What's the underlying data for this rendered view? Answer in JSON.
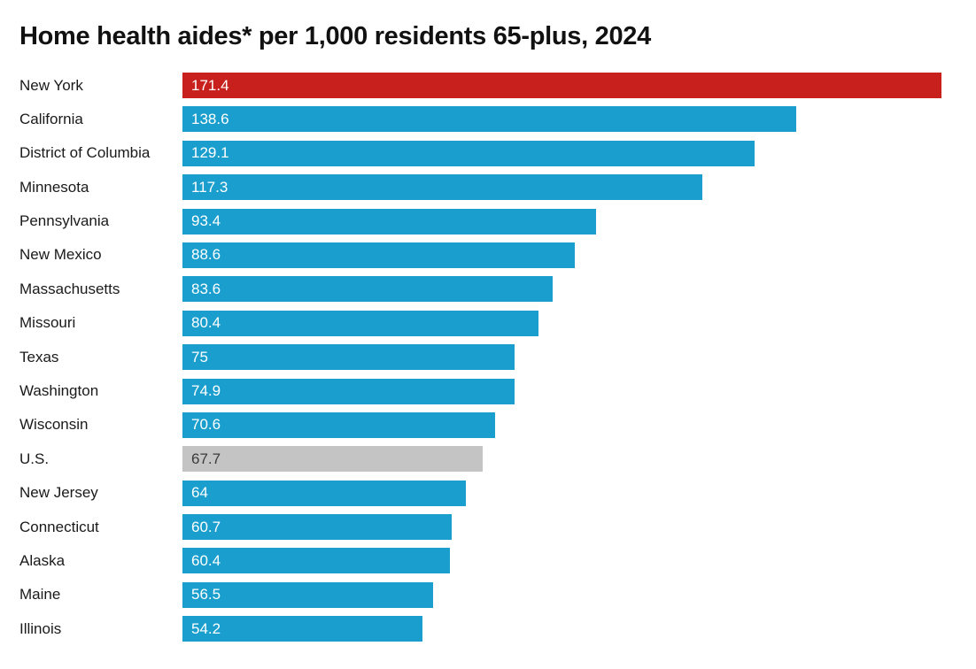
{
  "chart_data": {
    "type": "bar",
    "orientation": "horizontal",
    "title": "Home health aides* per 1,000 residents 65-plus, 2024",
    "xlim": [
      0,
      171.4
    ],
    "grid": false,
    "legend": false,
    "colors": {
      "state_bar": "#199ECD",
      "highlight_bar": "#C8201D",
      "reference_bar": "#C4C4C4",
      "value_text_on_bar": "#FFFFFF",
      "value_text_on_reference": "#3B3B3B",
      "label_text": "#1A1A1A",
      "title_text": "#111111"
    },
    "rows": [
      {
        "label": "New York",
        "value": 171.4,
        "display": "171.4",
        "kind": "highlight"
      },
      {
        "label": "California",
        "value": 138.6,
        "display": "138.6",
        "kind": "state"
      },
      {
        "label": "District of Columbia",
        "value": 129.1,
        "display": "129.1",
        "kind": "state"
      },
      {
        "label": "Minnesota",
        "value": 117.3,
        "display": "117.3",
        "kind": "state"
      },
      {
        "label": "Pennsylvania",
        "value": 93.4,
        "display": "93.4",
        "kind": "state"
      },
      {
        "label": "New Mexico",
        "value": 88.6,
        "display": "88.6",
        "kind": "state"
      },
      {
        "label": "Massachusetts",
        "value": 83.6,
        "display": "83.6",
        "kind": "state"
      },
      {
        "label": "Missouri",
        "value": 80.4,
        "display": "80.4",
        "kind": "state"
      },
      {
        "label": "Texas",
        "value": 75,
        "display": "75",
        "kind": "state"
      },
      {
        "label": "Washington",
        "value": 74.9,
        "display": "74.9",
        "kind": "state"
      },
      {
        "label": "Wisconsin",
        "value": 70.6,
        "display": "70.6",
        "kind": "state"
      },
      {
        "label": "U.S.",
        "value": 67.7,
        "display": "67.7",
        "kind": "reference"
      },
      {
        "label": "New Jersey",
        "value": 64,
        "display": "64",
        "kind": "state"
      },
      {
        "label": "Connecticut",
        "value": 60.7,
        "display": "60.7",
        "kind": "state"
      },
      {
        "label": "Alaska",
        "value": 60.4,
        "display": "60.4",
        "kind": "state"
      },
      {
        "label": "Maine",
        "value": 56.5,
        "display": "56.5",
        "kind": "state"
      },
      {
        "label": "Illinois",
        "value": 54.2,
        "display": "54.2",
        "kind": "state"
      }
    ]
  }
}
